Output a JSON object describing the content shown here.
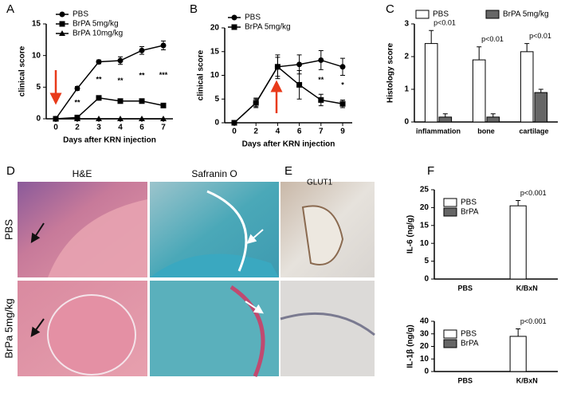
{
  "chart_data": [
    {
      "type": "line",
      "label": "A",
      "xlabel": "Days after KRN injection",
      "ylabel": "clinical score",
      "categories": [
        "0",
        "2",
        "3",
        "4",
        "6",
        "7"
      ],
      "series": [
        {
          "name": "PBS",
          "color": "#000000",
          "marker": "circle",
          "values": [
            0,
            4.8,
            9,
            9.2,
            10.8,
            11.6
          ],
          "errors": [
            0,
            0.3,
            0.3,
            0.6,
            0.6,
            0.7
          ]
        },
        {
          "name": "BrPA 5mg/kg",
          "color": "#000000",
          "marker": "square",
          "values": [
            0,
            0.2,
            3.3,
            2.8,
            2.8,
            2.1
          ],
          "errors": [
            0,
            0.2,
            0.3,
            0.2,
            0.2,
            0.2
          ]
        },
        {
          "name": "BrPA 10mg/kg",
          "color": "#000000",
          "marker": "triangle",
          "values": [
            0,
            0,
            0,
            0,
            0,
            0
          ],
          "errors": [
            0,
            0,
            0,
            0,
            0,
            0
          ]
        }
      ],
      "ylim": [
        0,
        15
      ],
      "yticks": [
        0,
        5,
        10,
        15
      ],
      "legend": "upper left",
      "annotations": [
        null,
        "**",
        "**",
        "**",
        "**",
        "***"
      ]
    },
    {
      "type": "line",
      "label": "B",
      "xlabel": "Days after KRN injection",
      "ylabel": "clinical score",
      "categories": [
        "0",
        "2",
        "4",
        "6",
        "7",
        "9"
      ],
      "series": [
        {
          "name": "PBS",
          "color": "#000000",
          "marker": "circle",
          "values": [
            0,
            4.2,
            11.8,
            12.3,
            13.2,
            11.8
          ],
          "errors": [
            0,
            0.8,
            2,
            2,
            2,
            1.8
          ]
        },
        {
          "name": "BrPA 5mg/kg",
          "color": "#000000",
          "marker": "square",
          "values": [
            0,
            4.2,
            11.8,
            8,
            4.8,
            4
          ],
          "errors": [
            0,
            1,
            2.5,
            3,
            1.2,
            0.8
          ]
        }
      ],
      "ylim": [
        0,
        20
      ],
      "yticks": [
        0,
        5,
        10,
        15,
        20
      ],
      "legend": "upper left",
      "annotations": [
        null,
        null,
        null,
        null,
        "**",
        "*"
      ]
    },
    {
      "type": "bar",
      "label": "C",
      "ylabel": "Histology score",
      "categories": [
        "inflammation",
        "bone",
        "cartilage"
      ],
      "series": [
        {
          "name": "PBS",
          "color": "#ffffff",
          "values": [
            2.4,
            1.9,
            2.15
          ],
          "errors": [
            0.4,
            0.4,
            0.25
          ]
        },
        {
          "name": "BrPA 5mg/kg",
          "color": "#666666",
          "values": [
            0.15,
            0.15,
            0.9
          ],
          "errors": [
            0.1,
            0.1,
            0.1
          ]
        }
      ],
      "ylim": [
        0,
        3
      ],
      "yticks": [
        0,
        1,
        2,
        3
      ],
      "legend": "top",
      "annotations": [
        "p<0.01",
        "p<0.01",
        "p<0.01"
      ]
    },
    {
      "type": "bar",
      "label": "F",
      "ylabel": "IL-6 (ng/g)",
      "categories": [
        "PBS",
        "K/BxN"
      ],
      "series": [
        {
          "name": "PBS",
          "color": "#ffffff",
          "values": [
            0,
            20.5
          ],
          "errors": [
            0,
            1.5
          ]
        },
        {
          "name": "BrPA",
          "color": "#666666",
          "values": [
            0,
            0
          ],
          "errors": [
            0,
            0
          ]
        }
      ],
      "ylim": [
        0,
        25
      ],
      "yticks": [
        0,
        5,
        10,
        15,
        20,
        25
      ],
      "legend": "upper left",
      "annotations": [
        null,
        "p<0.001"
      ]
    },
    {
      "type": "bar",
      "ylabel": "IL-1β (ng/g)",
      "categories": [
        "PBS",
        "K/BxN"
      ],
      "series": [
        {
          "name": "PBS",
          "color": "#ffffff",
          "values": [
            0,
            28
          ],
          "errors": [
            0,
            6
          ]
        },
        {
          "name": "BrPA",
          "color": "#666666",
          "values": [
            0,
            0
          ],
          "errors": [
            0,
            0
          ]
        }
      ],
      "ylim": [
        0,
        40
      ],
      "yticks": [
        0,
        10,
        20,
        30,
        40
      ],
      "legend": "upper left",
      "annotations": [
        null,
        "p<0.001"
      ]
    }
  ],
  "image_panels": {
    "d_label": "D",
    "he": "H&E",
    "safranin": "Safranin O",
    "e_label": "E",
    "glut1": "GLUT1",
    "row_pbs": "PBS",
    "row_brpa": "BrPa  5mg/kg"
  }
}
